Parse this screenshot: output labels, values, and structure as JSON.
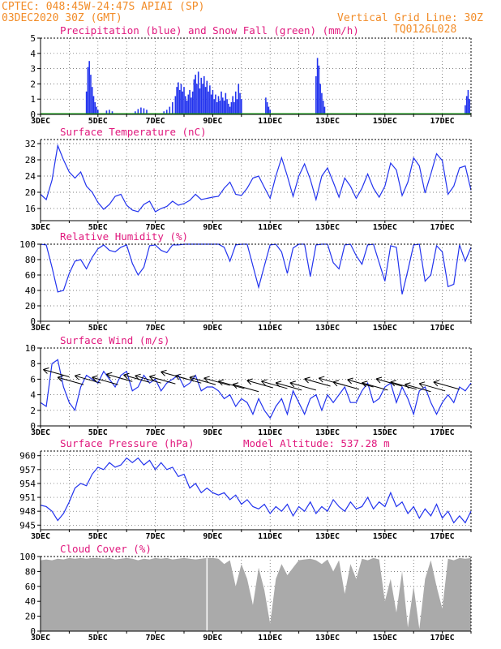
{
  "header": {
    "line1": "CPTEC:   048:45W-24:47S  APIAI (SP)",
    "line2": "03DEC2020 30Z (GMT)",
    "right1": "Vertical Grid Line: 30Z",
    "right2": "TQ0126L028"
  },
  "colors": {
    "orange": "#f28c28",
    "magenta": "#e0187d",
    "blue": "#2233ee",
    "green": "#19b219",
    "gray": "#aaaaaa"
  },
  "x_labels": [
    "3DEC",
    "5DEC",
    "7DEC",
    "9DEC",
    "11DEC",
    "13DEC",
    "15DEC",
    "17DEC"
  ],
  "panel_extra": "Model Altitude: 537.28 m",
  "chart_data": [
    {
      "type": "bar",
      "title": "Precipitation (blue) and Snow Fall (green) (mm/h)",
      "ylim": [
        0,
        5
      ],
      "yticks": [
        0,
        1,
        2,
        3,
        4,
        5
      ],
      "x_range": [
        3,
        18
      ],
      "bars": [
        [
          4.6,
          1.5
        ],
        [
          4.65,
          3.1
        ],
        [
          4.7,
          3.5
        ],
        [
          4.75,
          2.6
        ],
        [
          4.8,
          1.8
        ],
        [
          4.85,
          1.2
        ],
        [
          4.9,
          0.8
        ],
        [
          4.95,
          0.5
        ],
        [
          5.0,
          0.3
        ],
        [
          5.3,
          0.25
        ],
        [
          5.4,
          0.3
        ],
        [
          5.5,
          0.2
        ],
        [
          6.3,
          0.2
        ],
        [
          6.4,
          0.35
        ],
        [
          6.5,
          0.45
        ],
        [
          6.6,
          0.4
        ],
        [
          6.7,
          0.3
        ],
        [
          7.3,
          0.2
        ],
        [
          7.4,
          0.3
        ],
        [
          7.5,
          0.5
        ],
        [
          7.6,
          0.8
        ],
        [
          7.7,
          1.2
        ],
        [
          7.75,
          1.8
        ],
        [
          7.8,
          2.1
        ],
        [
          7.85,
          1.6
        ],
        [
          7.9,
          2.0
        ],
        [
          7.95,
          1.5
        ],
        [
          8.0,
          1.8
        ],
        [
          8.05,
          1.2
        ],
        [
          8.1,
          0.9
        ],
        [
          8.15,
          1.3
        ],
        [
          8.2,
          1.6
        ],
        [
          8.25,
          1.1
        ],
        [
          8.3,
          1.5
        ],
        [
          8.35,
          2.3
        ],
        [
          8.4,
          2.6
        ],
        [
          8.45,
          2.0
        ],
        [
          8.5,
          2.8
        ],
        [
          8.55,
          1.7
        ],
        [
          8.6,
          2.4
        ],
        [
          8.65,
          2.0
        ],
        [
          8.7,
          2.5
        ],
        [
          8.75,
          1.8
        ],
        [
          8.8,
          2.2
        ],
        [
          8.85,
          1.5
        ],
        [
          8.9,
          1.9
        ],
        [
          8.95,
          1.3
        ],
        [
          9.0,
          1.6
        ],
        [
          9.05,
          1.0
        ],
        [
          9.1,
          1.3
        ],
        [
          9.15,
          0.8
        ],
        [
          9.2,
          1.2
        ],
        [
          9.25,
          0.9
        ],
        [
          9.3,
          1.5
        ],
        [
          9.35,
          1.1
        ],
        [
          9.4,
          0.9
        ],
        [
          9.45,
          1.4
        ],
        [
          9.5,
          1.0
        ],
        [
          9.55,
          0.7
        ],
        [
          9.6,
          0.5
        ],
        [
          9.65,
          0.8
        ],
        [
          9.7,
          1.2
        ],
        [
          9.75,
          0.8
        ],
        [
          9.8,
          1.5
        ],
        [
          9.85,
          1.0
        ],
        [
          9.9,
          2.0
        ],
        [
          9.95,
          1.4
        ],
        [
          10.0,
          1.0
        ],
        [
          10.85,
          1.1
        ],
        [
          10.9,
          0.8
        ],
        [
          10.95,
          0.5
        ],
        [
          11.0,
          0.3
        ],
        [
          12.6,
          2.5
        ],
        [
          12.65,
          3.7
        ],
        [
          12.7,
          3.2
        ],
        [
          12.75,
          2.0
        ],
        [
          12.8,
          1.4
        ],
        [
          12.85,
          0.9
        ],
        [
          12.9,
          0.5
        ],
        [
          17.8,
          0.6
        ],
        [
          17.85,
          1.2
        ],
        [
          17.9,
          1.6
        ],
        [
          17.95,
          1.0
        ]
      ],
      "snow": []
    },
    {
      "type": "line",
      "title": "Surface Temperature (nC)",
      "ylim": [
        13,
        33
      ],
      "yticks": [
        16,
        20,
        24,
        28,
        32
      ],
      "x_range": [
        3,
        18
      ],
      "x": [
        3.0,
        3.2,
        3.4,
        3.6,
        3.8,
        4.0,
        4.2,
        4.4,
        4.6,
        4.8,
        5.0,
        5.2,
        5.4,
        5.6,
        5.8,
        6.0,
        6.2,
        6.4,
        6.6,
        6.8,
        7.0,
        7.2,
        7.4,
        7.6,
        7.8,
        8.0,
        8.2,
        8.4,
        8.6,
        8.8,
        9.0,
        9.2,
        9.4,
        9.6,
        9.8,
        10.0,
        10.2,
        10.4,
        10.6,
        10.8,
        11.0,
        11.2,
        11.4,
        11.6,
        11.8,
        12.0,
        12.2,
        12.4,
        12.6,
        12.8,
        13.0,
        13.2,
        13.4,
        13.6,
        13.8,
        14.0,
        14.2,
        14.4,
        14.6,
        14.8,
        15.0,
        15.2,
        15.4,
        15.6,
        15.8,
        16.0,
        16.2,
        16.4,
        16.6,
        16.8,
        17.0,
        17.2,
        17.4,
        17.6,
        17.8,
        18.0
      ],
      "y": [
        19.5,
        18.2,
        23,
        31.5,
        28,
        25,
        23.5,
        25,
        21.5,
        20,
        17.5,
        15.8,
        17,
        19,
        19.5,
        16.8,
        15.6,
        15.2,
        17,
        17.8,
        15.2,
        16,
        16.5,
        17.8,
        16.8,
        17.2,
        18,
        19.5,
        18.2,
        18.5,
        18.8,
        19,
        21,
        22.5,
        19.5,
        19.2,
        21,
        23.5,
        24,
        21.2,
        18.5,
        24,
        28.5,
        24,
        19,
        24,
        27,
        23.2,
        18.2,
        24,
        26,
        22.5,
        18.8,
        23.5,
        21.5,
        18.5,
        21,
        24.5,
        21,
        18.8,
        21.5,
        27.2,
        25.5,
        19.2,
        22.5,
        28.5,
        26.5,
        19.8,
        24.5,
        29.5,
        27.8,
        19.5,
        21.5,
        26,
        26.5,
        20.5
      ]
    },
    {
      "type": "line",
      "title": "Relative Humidity (%)",
      "ylim": [
        0,
        100
      ],
      "yticks": [
        0,
        20,
        40,
        60,
        80,
        100
      ],
      "x_range": [
        3,
        18
      ],
      "x": [
        3.0,
        3.2,
        3.4,
        3.6,
        3.8,
        4.0,
        4.2,
        4.4,
        4.6,
        4.8,
        5.0,
        5.2,
        5.4,
        5.6,
        5.8,
        6.0,
        6.2,
        6.4,
        6.6,
        6.8,
        7.0,
        7.2,
        7.4,
        7.6,
        7.8,
        8.0,
        8.2,
        8.4,
        8.6,
        8.8,
        9.0,
        9.2,
        9.4,
        9.6,
        9.8,
        10.0,
        10.2,
        10.4,
        10.6,
        10.8,
        11.0,
        11.2,
        11.4,
        11.6,
        11.8,
        12.0,
        12.2,
        12.4,
        12.6,
        12.8,
        13.0,
        13.2,
        13.4,
        13.6,
        13.8,
        14.0,
        14.2,
        14.4,
        14.6,
        14.8,
        15.0,
        15.2,
        15.4,
        15.6,
        15.8,
        16.0,
        16.2,
        16.4,
        16.6,
        16.8,
        17.0,
        17.2,
        17.4,
        17.6,
        17.8,
        18.0
      ],
      "y": [
        100,
        99,
        70,
        38,
        40,
        62,
        78,
        80,
        68,
        83,
        94,
        99,
        92,
        90,
        96,
        99,
        75,
        60,
        70,
        98,
        99,
        92,
        89,
        99,
        99,
        100,
        100,
        100,
        100,
        100,
        100,
        100,
        96,
        78,
        99,
        100,
        100,
        72,
        44,
        72,
        99,
        100,
        90,
        62,
        95,
        100,
        100,
        58,
        99,
        100,
        100,
        76,
        68,
        99,
        100,
        85,
        74,
        99,
        100,
        76,
        52,
        98,
        96,
        35,
        66,
        99,
        100,
        52,
        60,
        98,
        90,
        45,
        48,
        99,
        78,
        96
      ]
    },
    {
      "type": "line",
      "title": "Surface Wind (m/s)",
      "ylim": [
        0,
        10
      ],
      "yticks": [
        0,
        2,
        4,
        6,
        8,
        10
      ],
      "x_range": [
        3,
        18
      ],
      "x": [
        3.0,
        3.2,
        3.4,
        3.6,
        3.8,
        4.0,
        4.2,
        4.4,
        4.6,
        4.8,
        5.0,
        5.2,
        5.4,
        5.6,
        5.8,
        6.0,
        6.2,
        6.4,
        6.6,
        6.8,
        7.0,
        7.2,
        7.4,
        7.6,
        7.8,
        8.0,
        8.2,
        8.4,
        8.6,
        8.8,
        9.0,
        9.2,
        9.4,
        9.6,
        9.8,
        10.0,
        10.2,
        10.4,
        10.6,
        10.8,
        11.0,
        11.2,
        11.4,
        11.6,
        11.8,
        12.0,
        12.2,
        12.4,
        12.6,
        12.8,
        13.0,
        13.2,
        13.4,
        13.6,
        13.8,
        14.0,
        14.2,
        14.4,
        14.6,
        14.8,
        15.0,
        15.2,
        15.4,
        15.6,
        15.8,
        16.0,
        16.2,
        16.4,
        16.6,
        16.8,
        17.0,
        17.2,
        17.4,
        17.6,
        17.8,
        18.0
      ],
      "y": [
        3,
        2.5,
        8,
        8.5,
        5,
        3,
        2,
        5,
        6.5,
        6,
        5.5,
        7,
        6,
        5,
        6.5,
        7,
        4.5,
        5,
        6.5,
        5.5,
        6,
        4.5,
        5.5,
        6,
        6.5,
        5,
        5.5,
        6.5,
        4.5,
        5,
        5,
        4.5,
        3.5,
        4,
        2.5,
        3.5,
        3,
        1.5,
        3.5,
        2,
        1,
        2.5,
        3.5,
        1.5,
        4.5,
        3,
        1.5,
        3.5,
        4,
        2,
        4,
        3,
        4,
        5,
        3,
        3,
        4.5,
        5.5,
        3,
        3.5,
        5,
        5.5,
        3,
        5,
        3.5,
        1.5,
        4.5,
        5,
        3,
        1.5,
        3,
        4,
        3,
        5,
        4.5,
        5.5
      ],
      "vectors": [
        [
          4.0,
          6.3
        ],
        [
          4.5,
          5.3
        ],
        [
          5.1,
          5.5
        ],
        [
          5.7,
          5.3
        ],
        [
          6.2,
          5.7
        ],
        [
          6.8,
          5.6
        ],
        [
          7.2,
          5.5
        ],
        [
          7.7,
          5.4
        ],
        [
          8.1,
          6.0
        ],
        [
          8.6,
          5.5
        ],
        [
          9.1,
          5.3
        ],
        [
          9.6,
          5.2
        ],
        [
          10.1,
          4.8
        ],
        [
          10.6,
          4.4
        ],
        [
          11.1,
          4.9
        ],
        [
          11.6,
          4.8
        ],
        [
          12.1,
          4.6
        ],
        [
          12.6,
          4.6
        ],
        [
          13.1,
          5.1
        ],
        [
          13.6,
          5.2
        ],
        [
          14.1,
          4.7
        ],
        [
          14.6,
          5.0
        ],
        [
          15.1,
          4.6
        ],
        [
          15.6,
          5.1
        ],
        [
          16.1,
          4.7
        ],
        [
          16.6,
          4.4
        ],
        [
          17.1,
          4.5
        ],
        [
          17.6,
          4.7
        ]
      ]
    },
    {
      "type": "line",
      "title": "Surface Pressure (hPa)",
      "ylim": [
        944,
        961
      ],
      "yticks": [
        945,
        948,
        951,
        954,
        957,
        960
      ],
      "x_range": [
        3,
        18
      ],
      "x": [
        3.0,
        3.2,
        3.4,
        3.6,
        3.8,
        4.0,
        4.2,
        4.4,
        4.6,
        4.8,
        5.0,
        5.2,
        5.4,
        5.6,
        5.8,
        6.0,
        6.2,
        6.4,
        6.6,
        6.8,
        7.0,
        7.2,
        7.4,
        7.6,
        7.8,
        8.0,
        8.2,
        8.4,
        8.6,
        8.8,
        9.0,
        9.2,
        9.4,
        9.6,
        9.8,
        10.0,
        10.2,
        10.4,
        10.6,
        10.8,
        11.0,
        11.2,
        11.4,
        11.6,
        11.8,
        12.0,
        12.2,
        12.4,
        12.6,
        12.8,
        13.0,
        13.2,
        13.4,
        13.6,
        13.8,
        14.0,
        14.2,
        14.4,
        14.6,
        14.8,
        15.0,
        15.2,
        15.4,
        15.6,
        15.8,
        16.0,
        16.2,
        16.4,
        16.6,
        16.8,
        17.0,
        17.2,
        17.4,
        17.6,
        17.8,
        18.0
      ],
      "y": [
        949.3,
        949,
        948,
        946,
        947.5,
        950,
        953,
        954,
        953.5,
        956,
        957.5,
        957,
        958.5,
        957.5,
        958,
        959.5,
        958.5,
        959.5,
        958,
        959,
        957,
        958.5,
        957,
        957.5,
        955.5,
        956,
        953,
        954,
        952,
        953,
        952,
        951.5,
        952,
        950.5,
        951.5,
        949.5,
        950.5,
        949,
        948.5,
        949.5,
        947.5,
        949,
        948,
        949.5,
        947,
        949,
        948,
        950,
        947.5,
        949,
        948,
        950.5,
        949,
        948,
        950,
        948.5,
        949,
        951,
        948.5,
        950,
        949,
        952,
        949,
        950,
        947.5,
        949,
        946.5,
        948.5,
        947,
        949.5,
        946.5,
        948,
        945.5,
        947,
        945.5,
        948
      ]
    },
    {
      "type": "area",
      "title": "Cloud Cover (%)",
      "ylim": [
        0,
        100
      ],
      "yticks": [
        0,
        20,
        40,
        60,
        80,
        100
      ],
      "x_range": [
        3,
        18
      ],
      "x": [
        3.0,
        3.2,
        3.4,
        3.6,
        3.8,
        4.0,
        4.2,
        4.4,
        4.6,
        4.8,
        5.0,
        5.2,
        5.4,
        5.6,
        5.8,
        6.0,
        6.2,
        6.4,
        6.6,
        6.8,
        7.0,
        7.2,
        7.4,
        7.6,
        7.8,
        8.0,
        8.2,
        8.4,
        8.6,
        8.8,
        9.0,
        9.2,
        9.4,
        9.6,
        9.8,
        10.0,
        10.2,
        10.4,
        10.6,
        10.8,
        11.0,
        11.2,
        11.4,
        11.6,
        11.8,
        12.0,
        12.2,
        12.4,
        12.6,
        12.8,
        13.0,
        13.2,
        13.4,
        13.6,
        13.8,
        14.0,
        14.2,
        14.4,
        14.6,
        14.8,
        15.0,
        15.2,
        15.4,
        15.6,
        15.8,
        16.0,
        16.2,
        16.4,
        16.6,
        16.8,
        17.0,
        17.2,
        17.4,
        17.6,
        17.8,
        18.0
      ],
      "y": [
        95,
        96,
        95,
        97,
        96,
        98,
        97,
        98,
        97,
        98,
        98,
        97,
        98,
        96,
        97,
        98,
        97,
        95,
        97,
        96,
        98,
        97,
        98,
        96,
        97,
        98,
        97,
        96,
        97,
        98,
        98,
        97,
        90,
        95,
        60,
        90,
        70,
        35,
        85,
        55,
        10,
        70,
        90,
        75,
        85,
        95,
        96,
        97,
        95,
        90,
        96,
        80,
        95,
        50,
        90,
        70,
        97,
        95,
        98,
        96,
        40,
        70,
        25,
        80,
        5,
        60,
        3,
        70,
        95,
        60,
        30,
        97,
        95,
        98,
        97,
        98
      ]
    }
  ]
}
